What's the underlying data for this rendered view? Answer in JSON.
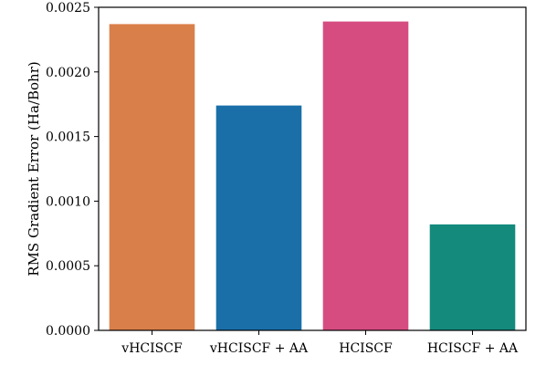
{
  "chart_data": {
    "type": "bar",
    "categories": [
      "vHCISCF",
      "vHCISCF + AA",
      "HCISCF",
      "HCISCF + AA"
    ],
    "values": [
      0.00237,
      0.00174,
      0.00239,
      0.00082
    ],
    "colors": [
      "#d97f4a",
      "#1a6fa8",
      "#d64c80",
      "#138a7c"
    ],
    "title": "",
    "xlabel": "",
    "ylabel": "RMS Gradient Error (Ha/Bohr)",
    "ylim": [
      0,
      0.0025
    ],
    "yticks": [
      "0.0000",
      "0.0005",
      "0.0010",
      "0.0015",
      "0.0020",
      "0.0025"
    ],
    "grid": false
  }
}
